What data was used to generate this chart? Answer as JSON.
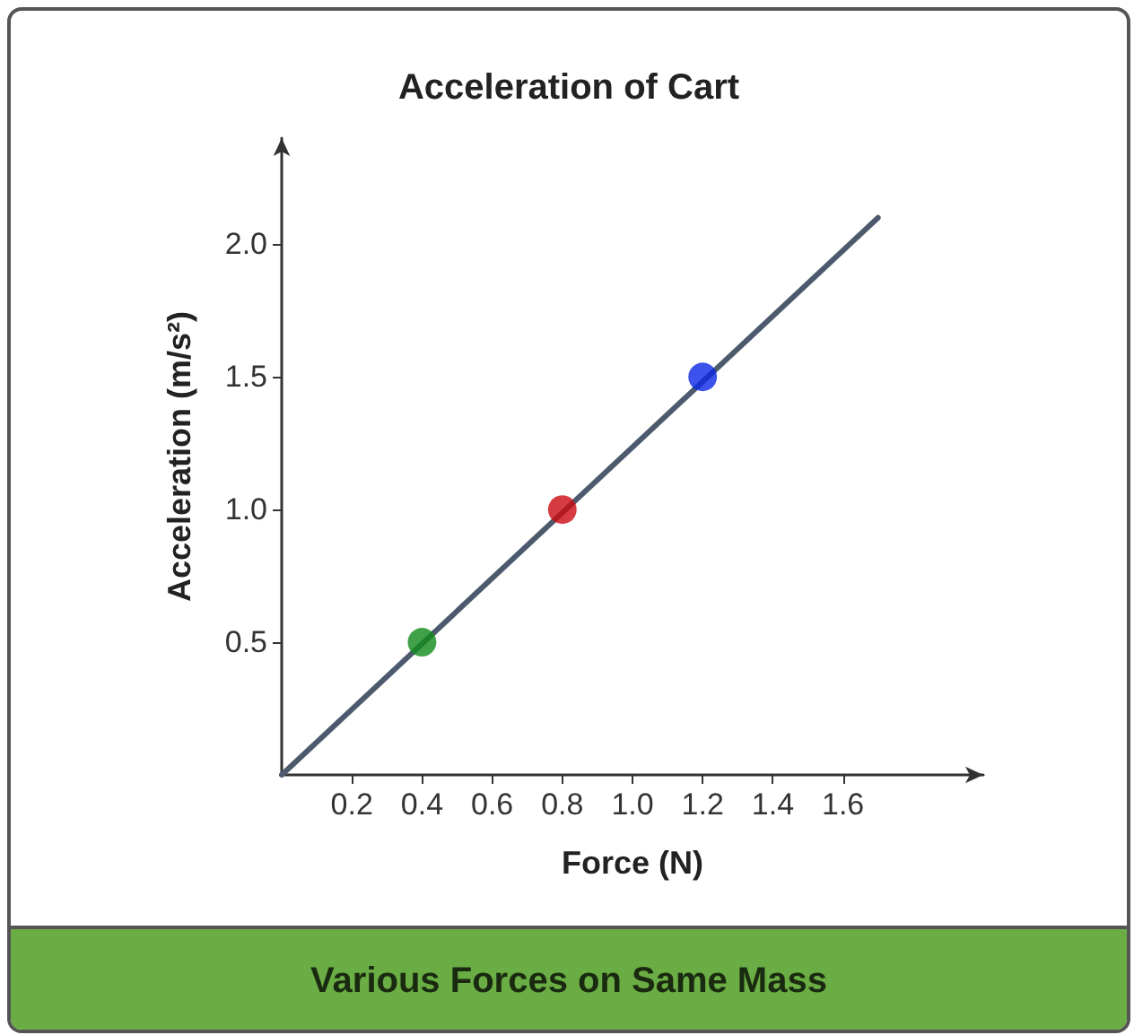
{
  "chart_data": {
    "type": "scatter",
    "title": "Acceleration of Cart",
    "xlabel": "Force (N)",
    "ylabel": "Acceleration (m/s²)",
    "series": [
      {
        "type": "line",
        "color": "#4b5a6c",
        "x": [
          0,
          1.7
        ],
        "values": [
          0,
          2.1
        ],
        "marker": "none"
      },
      {
        "colors": [
          "#118a1b",
          "#cc0a12",
          "#0a28e6"
        ],
        "x": [
          0.4,
          0.8,
          1.2
        ],
        "values": [
          0.5,
          1.0,
          1.5
        ],
        "marker": "circle"
      }
    ],
    "xlim": [
      0,
      2.0
    ],
    "xticks": [
      0.2,
      0.4,
      0.6,
      0.8,
      {
        "value": 1,
        "label": "1.0"
      },
      1.2,
      1.4,
      1.6
    ],
    "ylim": [
      0,
      2.4
    ],
    "yticks": [
      0.5,
      {
        "value": 1,
        "label": "1.0"
      },
      1.5,
      {
        "value": 2,
        "label": "2.0"
      }
    ],
    "grid": false,
    "annotations": [
      "Various Forces on Same Mass"
    ]
  }
}
